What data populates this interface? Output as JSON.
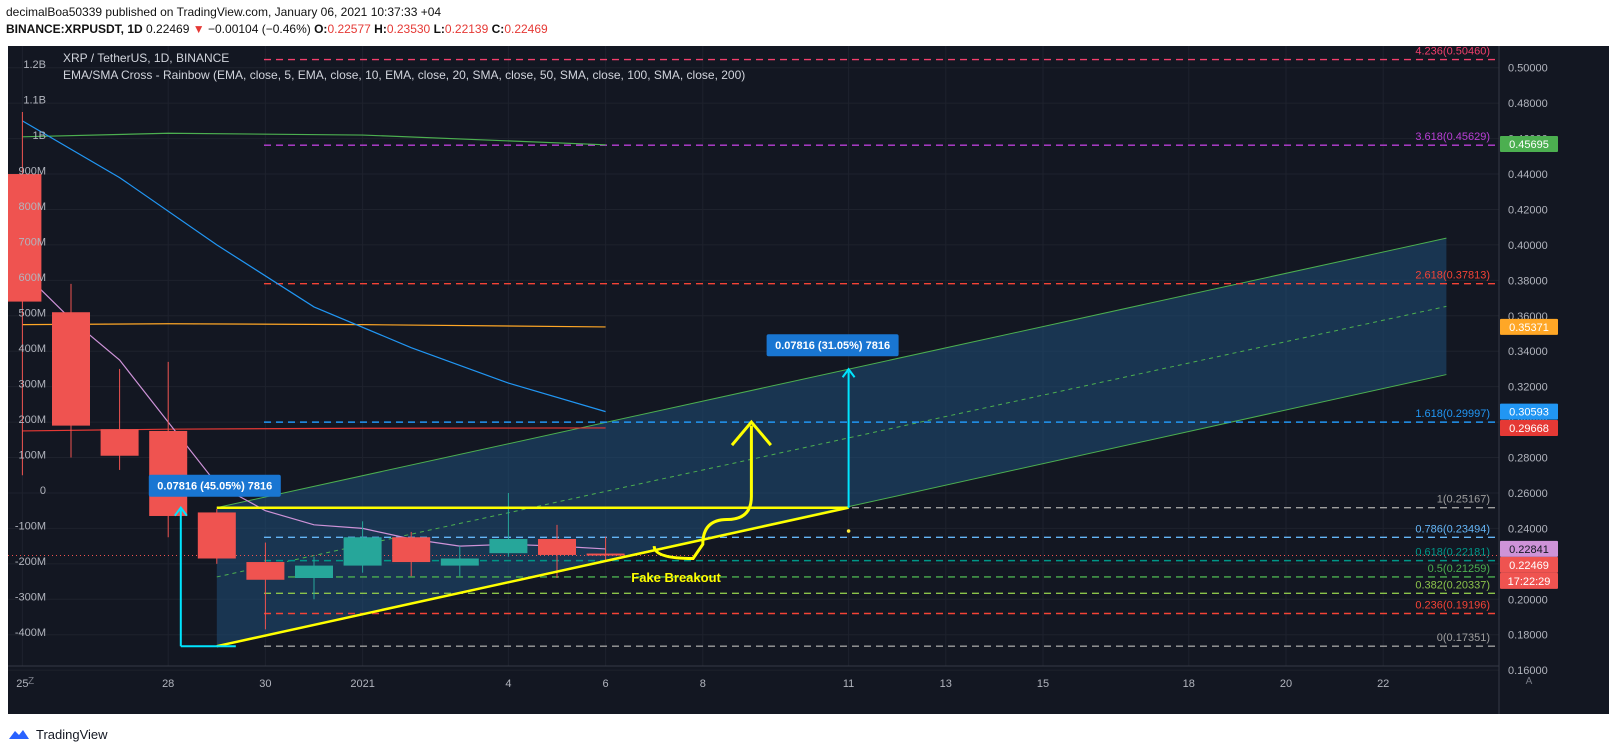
{
  "header": {
    "line1": "decimalBoa50339 published on TradingView.com, January 06, 2021 10:37:33 +04",
    "symbol": "BINANCE:XRPUSDT, 1D",
    "price": "0.22469",
    "arrow": "▼",
    "change": "−0.00104 (−0.46%)",
    "o_label": "O:",
    "o": "0.22577",
    "h_label": "H:",
    "h": "0.23530",
    "l_label": "L:",
    "l": "0.22139",
    "c_label": "C:",
    "c": "0.22469"
  },
  "legend": {
    "title": "XRP / TetherUS, 1D, BINANCE",
    "indicator": "EMA/SMA Cross - Rainbow (EMA, close, 5, EMA, close, 10, EMA, close, 20, SMA, close, 50, SMA, close, 100, SMA, close, 200)"
  },
  "footer": {
    "brand": "TradingView"
  },
  "corner": {
    "left": "Z",
    "right": "A"
  },
  "colors": {
    "background": "#131722",
    "bull": "#26a69a",
    "bear": "#ef5350",
    "channel": "#1f4e79",
    "yellow": "#ffff00",
    "arrow": "#00e5ff"
  },
  "chart_data": {
    "type": "candlestick",
    "y_price_range": [
      0.155,
      0.51
    ],
    "y_price_ticks": [
      "0.50000",
      "0.48000",
      "0.46000",
      "0.44000",
      "0.42000",
      "0.40000",
      "0.38000",
      "0.36000",
      "0.34000",
      "0.32000",
      "0.30000",
      "0.28000",
      "0.26000",
      "0.24000",
      "0.22000",
      "0.20000",
      "0.18000",
      "0.16000"
    ],
    "y_volume_ticks": [
      "1.2B",
      "1.1B",
      "1B",
      "900M",
      "800M",
      "700M",
      "600M",
      "500M",
      "400M",
      "300M",
      "200M",
      "100M",
      "0",
      "-100M",
      "-200M",
      "-300M",
      "-400M"
    ],
    "x_ticks": [
      {
        "label": "25",
        "day": -6
      },
      {
        "label": "28",
        "day": -3
      },
      {
        "label": "30",
        "day": -1
      },
      {
        "label": "2021",
        "day": 1
      },
      {
        "label": "4",
        "day": 4
      },
      {
        "label": "6",
        "day": 6
      },
      {
        "label": "8",
        "day": 8
      },
      {
        "label": "11",
        "day": 11
      },
      {
        "label": "13",
        "day": 13
      },
      {
        "label": "15",
        "day": 15
      },
      {
        "label": "18",
        "day": 18
      },
      {
        "label": "20",
        "day": 20
      },
      {
        "label": "22",
        "day": 22
      }
    ],
    "candles": [
      {
        "day": -6,
        "o": 0.44,
        "h": 0.475,
        "l": 0.27,
        "c": 0.368
      },
      {
        "day": -5,
        "o": 0.362,
        "h": 0.378,
        "l": 0.28,
        "c": 0.298
      },
      {
        "day": -4,
        "o": 0.296,
        "h": 0.33,
        "l": 0.273,
        "c": 0.281
      },
      {
        "day": -3,
        "o": 0.295,
        "h": 0.334,
        "l": 0.235,
        "c": 0.247
      },
      {
        "day": -2,
        "o": 0.249,
        "h": 0.251,
        "l": 0.22,
        "c": 0.223
      },
      {
        "day": -1,
        "o": 0.221,
        "h": 0.232,
        "l": 0.183,
        "c": 0.211
      },
      {
        "day": 0,
        "o": 0.212,
        "h": 0.224,
        "l": 0.2,
        "c": 0.219
      },
      {
        "day": 1,
        "o": 0.219,
        "h": 0.244,
        "l": 0.215,
        "c": 0.235
      },
      {
        "day": 2,
        "o": 0.235,
        "h": 0.238,
        "l": 0.213,
        "c": 0.221
      },
      {
        "day": 3,
        "o": 0.219,
        "h": 0.23,
        "l": 0.213,
        "c": 0.223
      },
      {
        "day": 4,
        "o": 0.226,
        "h": 0.26,
        "l": 0.224,
        "c": 0.234
      },
      {
        "day": 5,
        "o": 0.234,
        "h": 0.242,
        "l": 0.212,
        "c": 0.225
      },
      {
        "day": 6,
        "o": 0.2258,
        "h": 0.2353,
        "l": 0.2214,
        "c": 0.2247
      }
    ],
    "fib_levels": [
      {
        "label": "4.236(0.50460)",
        "value": 0.5046,
        "color": "#f23f6c"
      },
      {
        "label": "3.618(0.45629)",
        "value": 0.45629,
        "color": "#ba3fd6"
      },
      {
        "label": "2.618(0.37813)",
        "value": 0.37813,
        "color": "#f44336"
      },
      {
        "label": "1.618(0.29997)",
        "value": 0.29997,
        "color": "#2196f3"
      },
      {
        "label": "1(0.25167)",
        "value": 0.25167,
        "color": "#9e9e9e"
      },
      {
        "label": "0.786(0.23494)",
        "value": 0.23494,
        "color": "#64b5f6"
      },
      {
        "label": "0.618(0.22181)",
        "value": 0.22181,
        "color": "#009688"
      },
      {
        "label": "0.5(0.21259)",
        "value": 0.21259,
        "color": "#4caf50"
      },
      {
        "label": "0.382(0.20337)",
        "value": 0.20337,
        "color": "#8bc34a"
      },
      {
        "label": "0.236(0.19196)",
        "value": 0.19196,
        "color": "#f44336"
      },
      {
        "label": "0(0.17351)",
        "value": 0.17351,
        "color": "#9e9e9e"
      }
    ],
    "price_tags": [
      {
        "label": "0.45695",
        "value": 0.45695,
        "color": "#4caf50"
      },
      {
        "label": "0.35371",
        "value": 0.35371,
        "color": "#ffa726"
      },
      {
        "label": "0.30593",
        "value": 0.30593,
        "color": "#2196f3"
      },
      {
        "label": "0.29668",
        "value": 0.29668,
        "color": "#e53935"
      },
      {
        "label": "0.22841",
        "value": 0.22841,
        "color": "#ce93d8"
      },
      {
        "label": "0.22469",
        "value": 0.22469,
        "color": "#ef5350"
      },
      {
        "label": "17:22:29",
        "value": 0.211,
        "color": "#ef5350"
      }
    ],
    "measures": [
      {
        "label": "0.07816 (45.05%) 7816",
        "day": -2,
        "from": 0.17351,
        "to": 0.25167
      },
      {
        "label": "0.07816 (31.05%) 7816",
        "day": 11,
        "from": 0.25167,
        "to": 0.32983
      }
    ],
    "annotation": "Fake Breakout"
  }
}
